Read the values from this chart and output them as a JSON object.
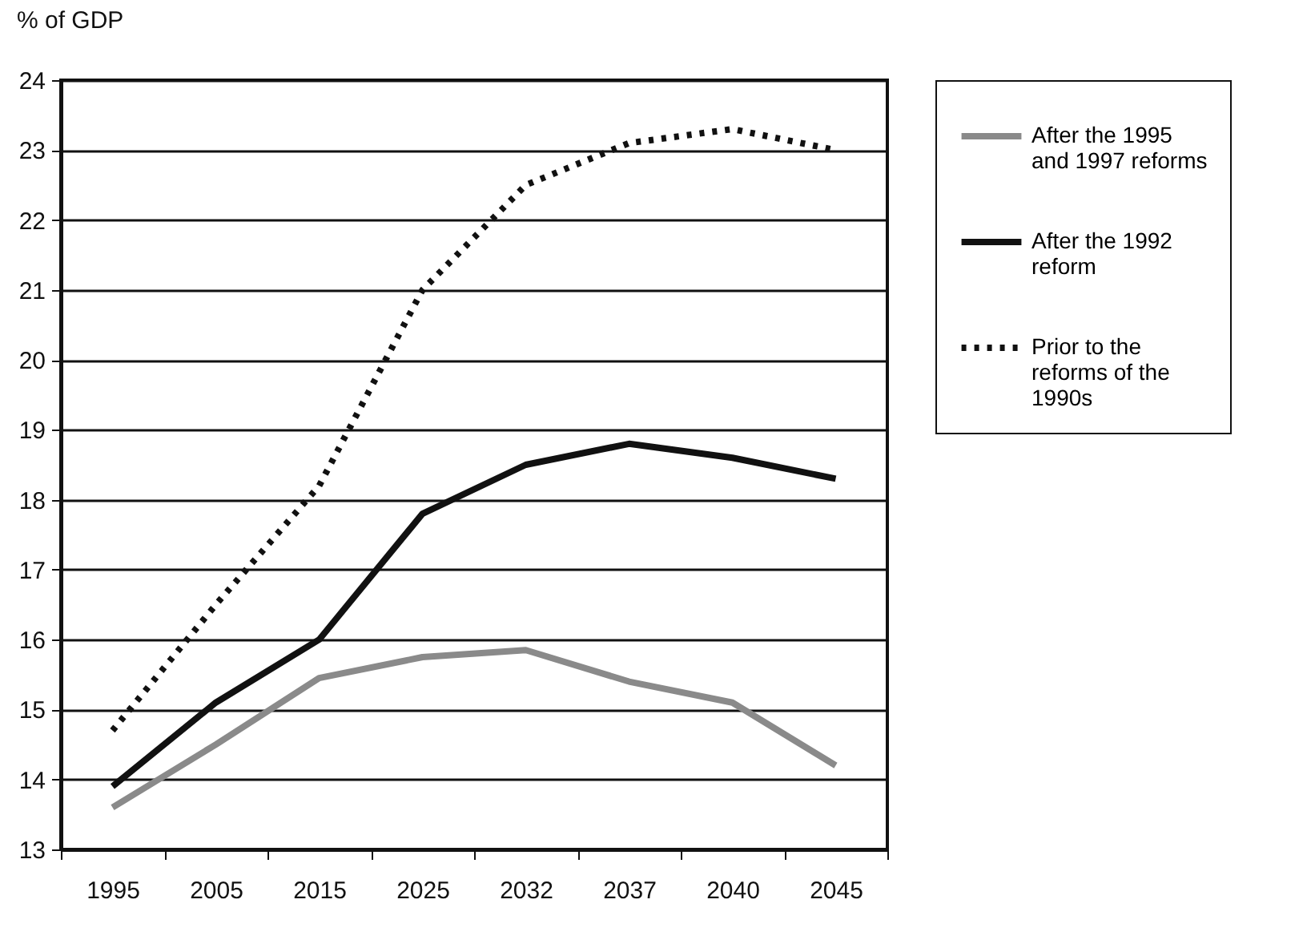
{
  "chart_data": {
    "type": "line",
    "ylabel": "% of GDP",
    "categories": [
      "1995",
      "2005",
      "2015",
      "2025",
      "2032",
      "2037",
      "2040",
      "2045"
    ],
    "series": [
      {
        "name": "After the 1995 and 1997 reforms",
        "color": "#8a8a8a",
        "line_style": "solid",
        "values": [
          13.6,
          14.5,
          15.45,
          15.75,
          15.85,
          15.4,
          15.1,
          14.2
        ]
      },
      {
        "name": "After the 1992 reform",
        "color": "#111111",
        "line_style": "solid",
        "values": [
          13.9,
          15.1,
          16.0,
          17.8,
          18.5,
          18.8,
          18.6,
          18.3
        ]
      },
      {
        "name": "Prior to the reforms of the 1990s",
        "color": "#111111",
        "line_style": "dotted",
        "values": [
          14.7,
          16.5,
          18.2,
          21.0,
          22.5,
          23.1,
          23.3,
          23.0
        ]
      }
    ],
    "ylim": [
      13,
      24
    ],
    "yticks": [
      13,
      14,
      15,
      16,
      17,
      18,
      19,
      20,
      21,
      22,
      23,
      24
    ],
    "grid": "y",
    "legend": "right",
    "marker": "none"
  }
}
